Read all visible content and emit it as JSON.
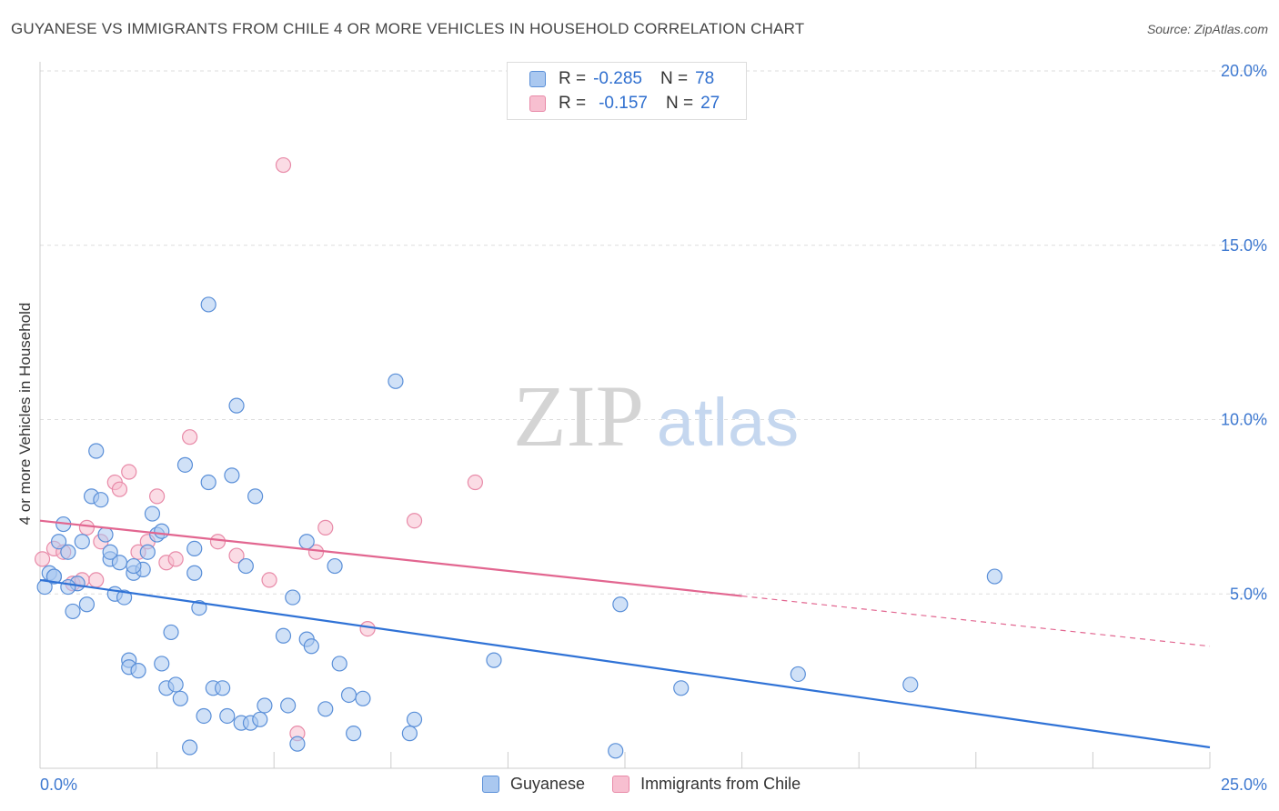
{
  "title": "GUYANESE VS IMMIGRANTS FROM CHILE 4 OR MORE VEHICLES IN HOUSEHOLD CORRELATION CHART",
  "source": "Source: ZipAtlas.com",
  "watermark": {
    "zip": "ZIP",
    "atlas": "atlas"
  },
  "colors": {
    "blue_fill": "#aac8f0",
    "blue_stroke": "#5a8fd8",
    "blue_line": "#2f72d6",
    "pink_fill": "#f7bfd0",
    "pink_stroke": "#e88aa8",
    "pink_line": "#e26690",
    "axis_text": "#3d78d0",
    "grid": "#dddddd"
  },
  "legend": {
    "r_label": "R =",
    "n_label": "N =",
    "rows": [
      {
        "r": "-0.285",
        "n": "78"
      },
      {
        "r": "-0.157",
        "n": "27"
      }
    ]
  },
  "bottom_legend": [
    "Guyanese",
    "Immigrants from Chile"
  ],
  "chart_data": {
    "type": "scatter",
    "title": "GUYANESE VS IMMIGRANTS FROM CHILE 4 OR MORE VEHICLES IN HOUSEHOLD CORRELATION CHART",
    "ylabel": "4 or more Vehicles in Household",
    "xlim": [
      0,
      25
    ],
    "ylim": [
      0,
      20
    ],
    "x_tick_labels": [
      "0.0%",
      "25.0%"
    ],
    "y_ticks": [
      5,
      10,
      15,
      20
    ],
    "y_tick_labels": [
      "5.0%",
      "10.0%",
      "15.0%",
      "20.0%"
    ],
    "grid": true,
    "series": [
      {
        "name": "Guyanese",
        "r": -0.285,
        "n": 78,
        "trend": {
          "x": [
            0,
            25
          ],
          "y": [
            5.4,
            0.6
          ],
          "dashed_from": null
        },
        "points": [
          [
            0.1,
            5.2
          ],
          [
            0.2,
            5.6
          ],
          [
            0.3,
            5.5
          ],
          [
            0.4,
            6.5
          ],
          [
            0.5,
            7.0
          ],
          [
            0.6,
            6.2
          ],
          [
            0.7,
            4.5
          ],
          [
            0.8,
            5.3
          ],
          [
            0.9,
            6.5
          ],
          [
            1.0,
            4.7
          ],
          [
            1.1,
            7.8
          ],
          [
            1.2,
            9.1
          ],
          [
            1.3,
            7.7
          ],
          [
            1.4,
            6.7
          ],
          [
            1.5,
            6.0
          ],
          [
            1.6,
            5.0
          ],
          [
            1.7,
            5.9
          ],
          [
            1.8,
            4.9
          ],
          [
            1.9,
            3.1
          ],
          [
            1.9,
            2.9
          ],
          [
            2.0,
            5.6
          ],
          [
            2.1,
            2.8
          ],
          [
            2.2,
            5.7
          ],
          [
            2.3,
            6.2
          ],
          [
            2.4,
            7.3
          ],
          [
            2.5,
            6.7
          ],
          [
            2.6,
            6.8
          ],
          [
            2.6,
            3.0
          ],
          [
            2.7,
            2.3
          ],
          [
            2.8,
            3.9
          ],
          [
            2.9,
            2.4
          ],
          [
            3.0,
            2.0
          ],
          [
            3.1,
            8.7
          ],
          [
            3.2,
            0.6
          ],
          [
            3.3,
            6.3
          ],
          [
            3.3,
            5.6
          ],
          [
            3.4,
            4.6
          ],
          [
            3.5,
            1.5
          ],
          [
            3.6,
            8.2
          ],
          [
            3.6,
            13.3
          ],
          [
            3.7,
            2.3
          ],
          [
            3.9,
            2.3
          ],
          [
            4.0,
            1.5
          ],
          [
            4.1,
            8.4
          ],
          [
            4.2,
            10.4
          ],
          [
            4.3,
            1.3
          ],
          [
            4.4,
            5.8
          ],
          [
            4.5,
            1.3
          ],
          [
            4.6,
            7.8
          ],
          [
            4.7,
            1.4
          ],
          [
            4.8,
            1.8
          ],
          [
            5.2,
            3.8
          ],
          [
            5.3,
            1.8
          ],
          [
            5.4,
            4.9
          ],
          [
            5.5,
            0.7
          ],
          [
            5.7,
            6.5
          ],
          [
            5.7,
            3.7
          ],
          [
            5.8,
            3.5
          ],
          [
            6.1,
            1.7
          ],
          [
            6.3,
            5.8
          ],
          [
            6.4,
            3.0
          ],
          [
            6.6,
            2.1
          ],
          [
            6.7,
            1.0
          ],
          [
            6.9,
            2.0
          ],
          [
            7.6,
            11.1
          ],
          [
            7.9,
            1.0
          ],
          [
            8.0,
            1.4
          ],
          [
            9.7,
            3.1
          ],
          [
            12.3,
            0.5
          ],
          [
            12.4,
            4.7
          ],
          [
            13.7,
            2.3
          ],
          [
            16.2,
            2.7
          ],
          [
            18.6,
            2.4
          ],
          [
            20.4,
            5.5
          ],
          [
            0.6,
            5.2
          ],
          [
            1.5,
            6.2
          ],
          [
            2.0,
            5.8
          ],
          [
            0.3,
            5.5
          ]
        ]
      },
      {
        "name": "Immigrants from Chile",
        "r": -0.157,
        "n": 27,
        "trend": {
          "x": [
            0,
            25
          ],
          "y": [
            7.1,
            3.5
          ],
          "dashed_from": 15
        },
        "points": [
          [
            0.05,
            6.0
          ],
          [
            0.3,
            6.3
          ],
          [
            0.5,
            6.2
          ],
          [
            0.7,
            5.3
          ],
          [
            0.9,
            5.4
          ],
          [
            1.0,
            6.9
          ],
          [
            1.2,
            5.4
          ],
          [
            1.3,
            6.5
          ],
          [
            1.6,
            8.2
          ],
          [
            1.7,
            8.0
          ],
          [
            1.9,
            8.5
          ],
          [
            2.1,
            6.2
          ],
          [
            2.3,
            6.5
          ],
          [
            2.5,
            7.8
          ],
          [
            2.7,
            5.9
          ],
          [
            2.9,
            6.0
          ],
          [
            3.2,
            9.5
          ],
          [
            3.8,
            6.5
          ],
          [
            4.2,
            6.1
          ],
          [
            4.9,
            5.4
          ],
          [
            5.2,
            17.3
          ],
          [
            5.5,
            1.0
          ],
          [
            5.9,
            6.2
          ],
          [
            6.1,
            6.9
          ],
          [
            7.0,
            4.0
          ],
          [
            8.0,
            7.1
          ],
          [
            9.3,
            8.2
          ]
        ]
      }
    ]
  }
}
